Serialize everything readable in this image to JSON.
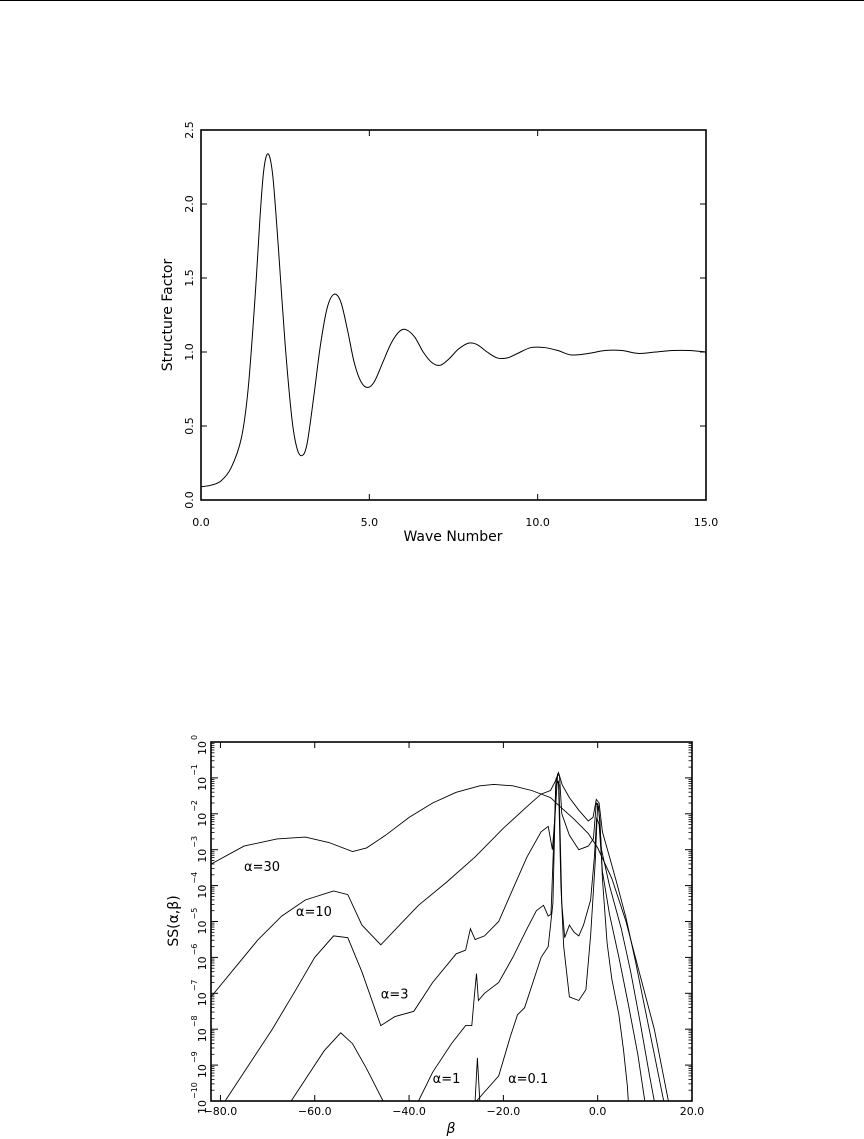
{
  "chart_data": [
    {
      "type": "line",
      "xlabel": "Wave Number",
      "ylabel": "Structure Factor",
      "xlim": [
        0.0,
        15.0
      ],
      "ylim": [
        0.0,
        2.5
      ],
      "x_ticks": [
        0,
        5,
        10,
        15
      ],
      "x_tick_labels": [
        "0.0",
        "5.0",
        "10.0",
        "15.0"
      ],
      "y_ticks": [
        0,
        0.5,
        1,
        1.5,
        2,
        2.5
      ],
      "y_tick_labels": [
        "0.0",
        "0.5",
        "1.0",
        "1.5",
        "2.0",
        "2.5"
      ],
      "grid": false,
      "legend": "none",
      "series": [
        {
          "points": [
            [
              0.0,
              0.09
            ],
            [
              0.3,
              0.1
            ],
            [
              0.6,
              0.13
            ],
            [
              0.9,
              0.22
            ],
            [
              1.2,
              0.42
            ],
            [
              1.4,
              0.75
            ],
            [
              1.6,
              1.35
            ],
            [
              1.75,
              1.9
            ],
            [
              1.85,
              2.2
            ],
            [
              1.95,
              2.33
            ],
            [
              2.05,
              2.31
            ],
            [
              2.15,
              2.15
            ],
            [
              2.3,
              1.7
            ],
            [
              2.5,
              1.05
            ],
            [
              2.7,
              0.55
            ],
            [
              2.85,
              0.35
            ],
            [
              3.0,
              0.3
            ],
            [
              3.15,
              0.38
            ],
            [
              3.35,
              0.7
            ],
            [
              3.55,
              1.05
            ],
            [
              3.75,
              1.3
            ],
            [
              3.95,
              1.39
            ],
            [
              4.15,
              1.34
            ],
            [
              4.35,
              1.15
            ],
            [
              4.55,
              0.93
            ],
            [
              4.75,
              0.8
            ],
            [
              4.95,
              0.76
            ],
            [
              5.15,
              0.8
            ],
            [
              5.4,
              0.93
            ],
            [
              5.65,
              1.06
            ],
            [
              5.9,
              1.14
            ],
            [
              6.1,
              1.15
            ],
            [
              6.35,
              1.1
            ],
            [
              6.6,
              1.0
            ],
            [
              6.85,
              0.93
            ],
            [
              7.1,
              0.91
            ],
            [
              7.35,
              0.95
            ],
            [
              7.65,
              1.02
            ],
            [
              7.95,
              1.06
            ],
            [
              8.2,
              1.05
            ],
            [
              8.5,
              1.0
            ],
            [
              8.8,
              0.96
            ],
            [
              9.1,
              0.96
            ],
            [
              9.4,
              0.99
            ],
            [
              9.8,
              1.03
            ],
            [
              10.2,
              1.03
            ],
            [
              10.6,
              1.01
            ],
            [
              11.0,
              0.98
            ],
            [
              11.5,
              0.99
            ],
            [
              12.0,
              1.01
            ],
            [
              12.5,
              1.01
            ],
            [
              13.0,
              0.99
            ],
            [
              13.5,
              1.0
            ],
            [
              14.0,
              1.01
            ],
            [
              14.5,
              1.01
            ],
            [
              15.0,
              1.0
            ]
          ]
        }
      ]
    },
    {
      "type": "line",
      "xlabel": "β",
      "ylabel": "SS(α,β)",
      "xlim": [
        -82,
        20
      ],
      "ylim": [
        -10,
        0
      ],
      "y_scale": "log",
      "x_ticks": [
        -80,
        -60,
        -40,
        -20,
        0,
        20
      ],
      "x_tick_labels": [
        "−80.0",
        "−60.0",
        "−40.0",
        "−20.0",
        "0.0",
        "20.0"
      ],
      "y_ticks": [
        -10,
        -9,
        -8,
        -7,
        -6,
        -5,
        -4,
        -3,
        -2,
        -1,
        0
      ],
      "y_tick_labels": [
        "10",
        "10",
        "10",
        "10",
        "10",
        "10",
        "10",
        "10",
        "10",
        "10",
        "10"
      ],
      "y_tick_exponents": [
        "−10",
        "−9",
        "−8",
        "−7",
        "−6",
        "−5",
        "−4",
        "−3",
        "−2",
        "−1",
        "0"
      ],
      "grid": false,
      "legend": "none",
      "series": [
        {
          "name": "α=30",
          "points": [
            [
              -82,
              -3.4
            ],
            [
              -75,
              -2.9
            ],
            [
              -68,
              -2.7
            ],
            [
              -62,
              -2.65
            ],
            [
              -57,
              -2.8
            ],
            [
              -52,
              -3.05
            ],
            [
              -49,
              -2.95
            ],
            [
              -45,
              -2.6
            ],
            [
              -40,
              -2.1
            ],
            [
              -35,
              -1.7
            ],
            [
              -30,
              -1.4
            ],
            [
              -25,
              -1.22
            ],
            [
              -22,
              -1.18
            ],
            [
              -18,
              -1.22
            ],
            [
              -14,
              -1.35
            ],
            [
              -10,
              -1.55
            ],
            [
              -8,
              -1.8
            ],
            [
              -5,
              -2.15
            ],
            [
              -2,
              -2.55
            ],
            [
              0,
              -2.95
            ],
            [
              3,
              -3.8
            ],
            [
              6,
              -5.0
            ],
            [
              9,
              -6.5
            ],
            [
              12,
              -8.0
            ],
            [
              15,
              -10.0
            ]
          ]
        },
        {
          "name": "α=10",
          "points": [
            [
              -82,
              -7.1
            ],
            [
              -77,
              -6.3
            ],
            [
              -72,
              -5.5
            ],
            [
              -67,
              -4.85
            ],
            [
              -62,
              -4.4
            ],
            [
              -56,
              -4.15
            ],
            [
              -53,
              -4.25
            ],
            [
              -50,
              -5.1
            ],
            [
              -46,
              -5.65
            ],
            [
              -42,
              -5.1
            ],
            [
              -38,
              -4.55
            ],
            [
              -32,
              -3.9
            ],
            [
              -26,
              -3.2
            ],
            [
              -20,
              -2.4
            ],
            [
              -15,
              -1.8
            ],
            [
              -12,
              -1.45
            ],
            [
              -10,
              -1.35
            ],
            [
              -9,
              -1.1
            ],
            [
              -8.3,
              -0.85
            ],
            [
              -7.5,
              -1.2
            ],
            [
              -6,
              -1.55
            ],
            [
              -4,
              -1.9
            ],
            [
              -2,
              -2.2
            ],
            [
              -1,
              -2.1
            ],
            [
              -0.3,
              -1.6
            ],
            [
              0.3,
              -1.7
            ],
            [
              1,
              -2.5
            ],
            [
              2.5,
              -3.2
            ],
            [
              4,
              -3.9
            ],
            [
              6,
              -4.9
            ],
            [
              8,
              -6.1
            ],
            [
              10,
              -7.4
            ],
            [
              12,
              -8.7
            ],
            [
              14,
              -10.0
            ]
          ]
        },
        {
          "name": "α=3",
          "points": [
            [
              -79,
              -10.0
            ],
            [
              -74,
              -9.0
            ],
            [
              -69,
              -8.0
            ],
            [
              -64,
              -6.9
            ],
            [
              -60,
              -6.0
            ],
            [
              -56,
              -5.4
            ],
            [
              -53,
              -5.45
            ],
            [
              -50,
              -6.4
            ],
            [
              -46,
              -7.9
            ],
            [
              -43,
              -7.65
            ],
            [
              -39,
              -7.5
            ],
            [
              -35,
              -6.7
            ],
            [
              -30,
              -5.9
            ],
            [
              -28,
              -5.8
            ],
            [
              -27,
              -5.2
            ],
            [
              -26,
              -5.5
            ],
            [
              -24,
              -5.4
            ],
            [
              -21,
              -5.0
            ],
            [
              -18,
              -4.1
            ],
            [
              -15,
              -3.2
            ],
            [
              -12,
              -2.5
            ],
            [
              -10.5,
              -2.35
            ],
            [
              -9.6,
              -3.0
            ],
            [
              -9,
              -2.0
            ],
            [
              -8.5,
              -0.9
            ],
            [
              -8.1,
              -0.95
            ],
            [
              -7.6,
              -2.0
            ],
            [
              -6,
              -2.6
            ],
            [
              -4,
              -3.0
            ],
            [
              -2,
              -2.9
            ],
            [
              -0.9,
              -2.7
            ],
            [
              -0.3,
              -1.7
            ],
            [
              0.2,
              -1.8
            ],
            [
              0.8,
              -3.0
            ],
            [
              2.5,
              -4.0
            ],
            [
              5,
              -5.2
            ],
            [
              7,
              -6.4
            ],
            [
              9,
              -7.8
            ],
            [
              11,
              -9.3
            ],
            [
              12,
              -10.0
            ]
          ]
        },
        {
          "name": "α=1",
          "points": [
            [
              -65,
              -10.0
            ],
            [
              -62,
              -9.4
            ],
            [
              -58,
              -8.6
            ],
            [
              -54.5,
              -8.1
            ],
            [
              -52,
              -8.4
            ],
            [
              -49,
              -9.1
            ],
            [
              -45.5,
              -10.0
            ]
          ]
        },
        {
          "name": "α=1",
          "points": [
            [
              -38,
              -10.0
            ],
            [
              -35,
              -9.2
            ],
            [
              -31,
              -8.4
            ],
            [
              -28,
              -7.9
            ],
            [
              -26.7,
              -7.9
            ],
            [
              -26.1,
              -7.0
            ],
            [
              -25.7,
              -6.45
            ],
            [
              -25.3,
              -7.2
            ],
            [
              -24,
              -7.0
            ],
            [
              -21,
              -6.7
            ],
            [
              -18,
              -6.0
            ],
            [
              -15,
              -5.2
            ],
            [
              -13,
              -4.7
            ],
            [
              -11.5,
              -4.55
            ],
            [
              -10.5,
              -4.85
            ],
            [
              -9.9,
              -4.8
            ],
            [
              -9.4,
              -3.0
            ],
            [
              -8.8,
              -1.0
            ],
            [
              -8.2,
              -1.2
            ],
            [
              -7.6,
              -4.5
            ],
            [
              -7,
              -5.45
            ],
            [
              -6,
              -5.1
            ],
            [
              -5,
              -5.3
            ],
            [
              -4,
              -5.4
            ],
            [
              -3,
              -5.1
            ],
            [
              -1.5,
              -4.4
            ],
            [
              -0.7,
              -3.2
            ],
            [
              -0.2,
              -2.1
            ],
            [
              0.3,
              -2.3
            ],
            [
              1,
              -3.6
            ],
            [
              2.5,
              -4.8
            ],
            [
              4.5,
              -6.0
            ],
            [
              6.5,
              -7.3
            ],
            [
              8.5,
              -8.7
            ],
            [
              10,
              -10.0
            ]
          ]
        },
        {
          "name": "α=0.1",
          "points": [
            [
              -26,
              -10.0
            ],
            [
              -25.5,
              -8.8
            ],
            [
              -25,
              -10.0
            ]
          ]
        },
        {
          "name": "α=0.1",
          "points": [
            [
              -25.7,
              -10.0
            ],
            [
              -21,
              -9.3
            ],
            [
              -18.5,
              -8.2
            ],
            [
              -17,
              -7.6
            ],
            [
              -15.5,
              -7.4
            ],
            [
              -14,
              -6.8
            ],
            [
              -12,
              -6.0
            ],
            [
              -10.5,
              -5.7
            ],
            [
              -9.5,
              -4.5
            ],
            [
              -8.9,
              -1.2
            ],
            [
              -8.3,
              -1.1
            ],
            [
              -7.8,
              -4.0
            ],
            [
              -7.2,
              -5.7
            ],
            [
              -6,
              -7.1
            ],
            [
              -4,
              -7.2
            ],
            [
              -2.5,
              -6.9
            ],
            [
              -1.5,
              -5.4
            ],
            [
              -0.5,
              -3.3
            ],
            [
              0,
              -1.7
            ],
            [
              0.5,
              -2.2
            ],
            [
              1,
              -3.8
            ],
            [
              2,
              -5.6
            ],
            [
              3,
              -6.6
            ],
            [
              4.5,
              -7.6
            ],
            [
              5.5,
              -8.6
            ],
            [
              6.3,
              -9.6
            ],
            [
              6.5,
              -10.0
            ]
          ]
        }
      ],
      "annotations": [
        {
          "text": "α=30",
          "x": -75,
          "y": -3.6
        },
        {
          "text": "α=10",
          "x": -64,
          "y": -4.85
        },
        {
          "text": "α=3",
          "x": -46,
          "y": -7.15
        },
        {
          "text": "α=1",
          "x": -35,
          "y": -9.5
        },
        {
          "text": "α=0.1",
          "x": -19,
          "y": -9.5
        }
      ]
    }
  ]
}
